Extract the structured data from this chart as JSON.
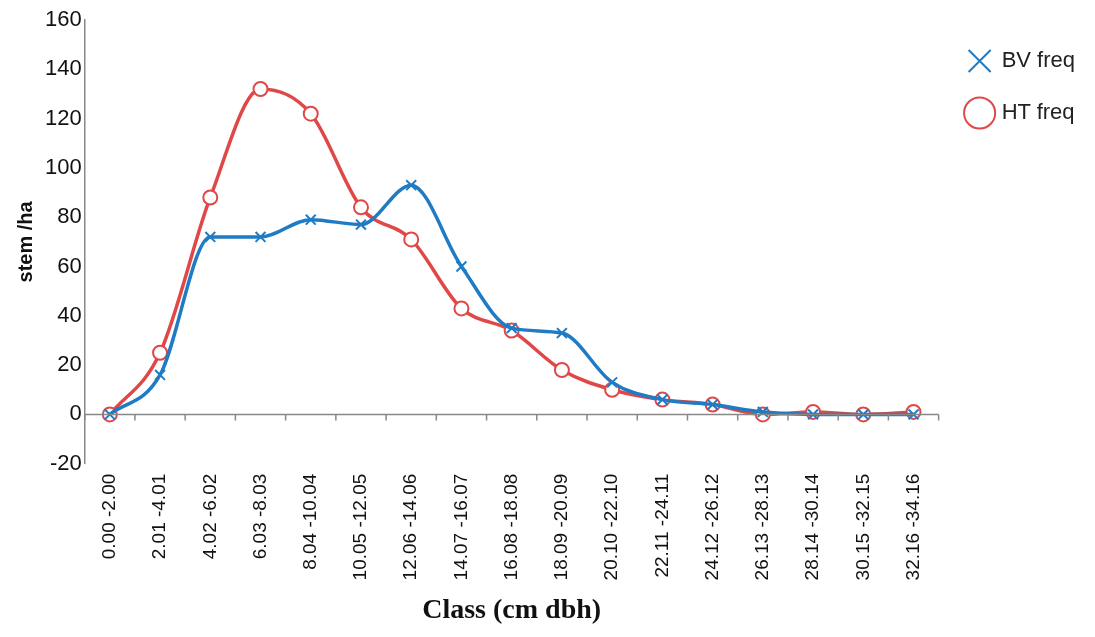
{
  "chart_data": {
    "type": "line",
    "xlabel": "Class (cm dbh)",
    "ylabel": "stem /ha",
    "categories": [
      "0.00 -2.00",
      "2.01 -4.01",
      "4.02 -6.02",
      "6.03 -8.03",
      "8.04 -10.04",
      "10.05 -12.05",
      "12.06 -14.06",
      "14.07 -16.07",
      "16.08 -18.08",
      "18.09 -20.09",
      "20.10 -22.10",
      "22.11 -24.11",
      "24.12 -26.12",
      "26.13 -28.13",
      "28.14 -30.14",
      "30.15 -32.15",
      "32.16 -34.16"
    ],
    "series": [
      {
        "name": "BV freq",
        "color": "#1f7bc4",
        "marker": "cross",
        "values": [
          0,
          16,
          72,
          72,
          79,
          77,
          93,
          60,
          35,
          33,
          13,
          6,
          4,
          1,
          0,
          0,
          0
        ]
      },
      {
        "name": "HT freq",
        "color": "#e04848",
        "marker": "circle",
        "values": [
          0,
          25,
          88,
          132,
          122,
          84,
          71,
          43,
          34,
          18,
          10,
          6,
          4,
          0,
          1,
          0,
          1
        ]
      }
    ],
    "ylim": [
      -20,
      160
    ],
    "yticks": [
      -20,
      0,
      20,
      40,
      60,
      80,
      100,
      120,
      140,
      160
    ],
    "legend": "top right"
  }
}
